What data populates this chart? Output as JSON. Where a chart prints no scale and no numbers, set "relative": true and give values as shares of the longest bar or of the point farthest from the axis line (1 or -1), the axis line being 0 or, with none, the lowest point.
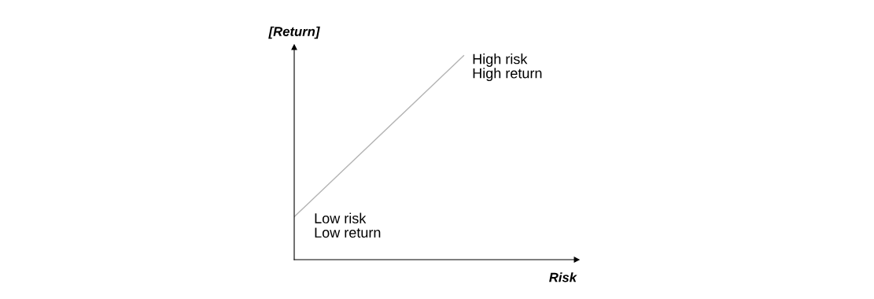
{
  "chart_data": {
    "type": "line",
    "relative": true,
    "categories": [
      null,
      null
    ],
    "series": [
      {
        "color": "#b4b4b4",
        "values": [
          0.21,
          1
        ]
      }
    ],
    "xlabel": "Risk",
    "ylabel": "[Return]",
    "grid": false,
    "legend": false,
    "annotations": [
      "High risk\nHigh return",
      "Low risk\nLow return"
    ]
  }
}
